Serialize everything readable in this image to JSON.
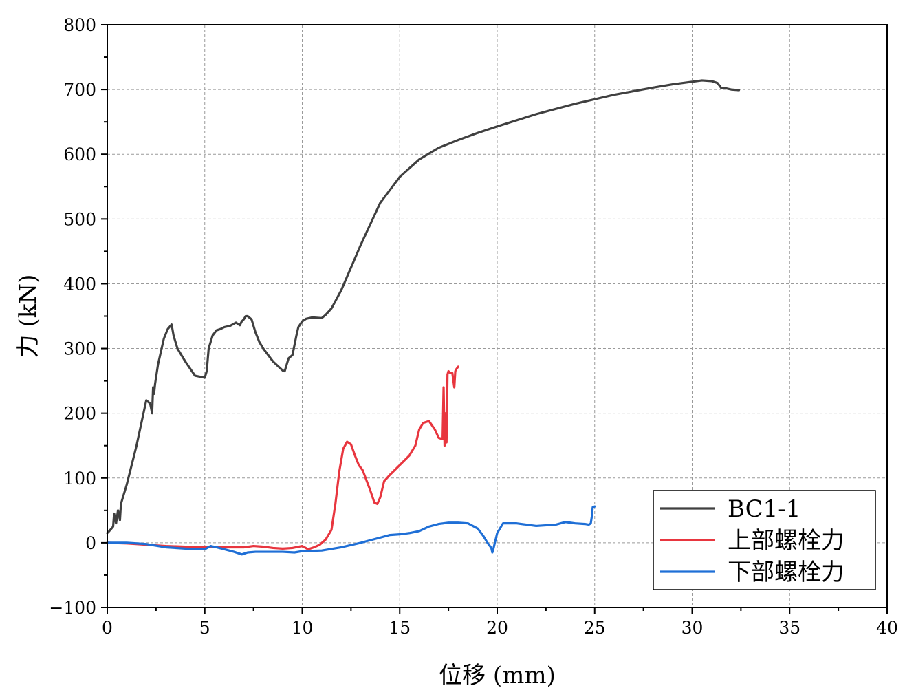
{
  "chart_data": {
    "type": "line",
    "xlabel": "位移 (mm)",
    "ylabel": "力 (kN)",
    "xlim": [
      0,
      40
    ],
    "ylim": [
      -100,
      800
    ],
    "xticks": [
      0,
      5,
      10,
      15,
      20,
      25,
      30,
      35,
      40
    ],
    "yticks": [
      -100,
      0,
      100,
      200,
      300,
      400,
      500,
      600,
      700,
      800
    ],
    "grid": true,
    "legend_position": "bottom-right",
    "series": [
      {
        "name": "BC1-1",
        "color": "#404040",
        "x": [
          0,
          0.1,
          0.3,
          0.35,
          0.45,
          0.55,
          0.65,
          0.7,
          0.8,
          1.0,
          1.5,
          2.0,
          2.2,
          2.3,
          2.35,
          2.4,
          2.45,
          2.6,
          2.9,
          3.1,
          3.3,
          3.4,
          3.6,
          4.0,
          4.5,
          5.0,
          5.1,
          5.2,
          5.4,
          5.6,
          5.8,
          6.0,
          6.3,
          6.6,
          6.8,
          6.9,
          7.0,
          7.1,
          7.2,
          7.4,
          7.6,
          7.8,
          8.0,
          8.5,
          9.0,
          9.1,
          9.2,
          9.3,
          9.5,
          9.7,
          9.8,
          10.0,
          10.2,
          10.5,
          11.0,
          11.2,
          11.5,
          12.0,
          12.5,
          13.0,
          14.0,
          15.0,
          16.0,
          17.0,
          18.0,
          19.0,
          20.0,
          22.0,
          24.0,
          26.0,
          28.0,
          29.0,
          30.0,
          30.5,
          31.0,
          31.3,
          31.5,
          31.7,
          32.0,
          32.4
        ],
        "y": [
          15,
          18,
          25,
          45,
          30,
          50,
          35,
          60,
          70,
          90,
          150,
          220,
          215,
          200,
          240,
          230,
          245,
          275,
          315,
          330,
          337,
          320,
          300,
          280,
          258,
          255,
          265,
          300,
          320,
          328,
          330,
          333,
          335,
          340,
          336,
          342,
          345,
          350,
          350,
          345,
          325,
          310,
          300,
          280,
          266,
          265,
          275,
          285,
          290,
          320,
          333,
          342,
          346,
          348,
          347,
          352,
          362,
          390,
          425,
          460,
          525,
          565,
          592,
          610,
          622,
          633,
          643,
          662,
          678,
          692,
          703,
          708,
          712,
          714,
          713,
          710,
          702,
          702,
          700,
          699
        ]
      },
      {
        "name": "上部螺栓力",
        "color": "#e8363f",
        "x": [
          0,
          1,
          2,
          3,
          4,
          5,
          6,
          7,
          7.5,
          8,
          8.5,
          9,
          9.5,
          10,
          10.3,
          10.6,
          10.9,
          11.2,
          11.5,
          11.7,
          11.9,
          12.1,
          12.3,
          12.5,
          12.7,
          12.9,
          13.1,
          13.3,
          13.5,
          13.7,
          13.85,
          14.0,
          14.2,
          14.5,
          15.0,
          15.5,
          15.8,
          16.0,
          16.2,
          16.5,
          16.8,
          17.0,
          17.2,
          17.25,
          17.3,
          17.35,
          17.4,
          17.45,
          17.5,
          17.6,
          17.7,
          17.8,
          17.85,
          17.9,
          18.0
        ],
        "y": [
          0,
          -1,
          -3,
          -5,
          -6,
          -6,
          -7,
          -7,
          -5,
          -6,
          -8,
          -9,
          -8,
          -5,
          -10,
          -7,
          -3,
          5,
          20,
          60,
          110,
          145,
          156,
          152,
          135,
          120,
          112,
          96,
          80,
          62,
          60,
          70,
          95,
          105,
          120,
          135,
          150,
          175,
          185,
          188,
          175,
          162,
          160,
          240,
          150,
          200,
          155,
          260,
          265,
          262,
          262,
          240,
          265,
          268,
          272
        ]
      },
      {
        "name": "下部螺栓力",
        "color": "#1f6fd6",
        "x": [
          0,
          1,
          2,
          3,
          4,
          5,
          5.3,
          5.6,
          6.0,
          6.5,
          6.9,
          7.2,
          7.6,
          8.0,
          9.0,
          9.6,
          10.0,
          11.0,
          12.0,
          13.0,
          14.0,
          14.5,
          15.0,
          15.5,
          16.0,
          16.5,
          17.0,
          17.5,
          18.0,
          18.5,
          19.0,
          19.3,
          19.5,
          19.7,
          19.75,
          19.8,
          20.0,
          20.3,
          21.0,
          22.0,
          23.0,
          23.5,
          24.0,
          24.5,
          24.7,
          24.8,
          24.85,
          24.9,
          25.0
        ],
        "y": [
          0,
          0,
          -2,
          -7,
          -9,
          -10,
          -5,
          -7,
          -10,
          -14,
          -18,
          -15,
          -14,
          -14,
          -14,
          -15,
          -13,
          -12,
          -7,
          0,
          8,
          12,
          13,
          15,
          18,
          25,
          29,
          31,
          31,
          30,
          22,
          10,
          0,
          -8,
          -15,
          -10,
          15,
          30,
          30,
          26,
          28,
          32,
          30,
          29,
          28,
          30,
          40,
          55,
          56
        ]
      }
    ]
  }
}
